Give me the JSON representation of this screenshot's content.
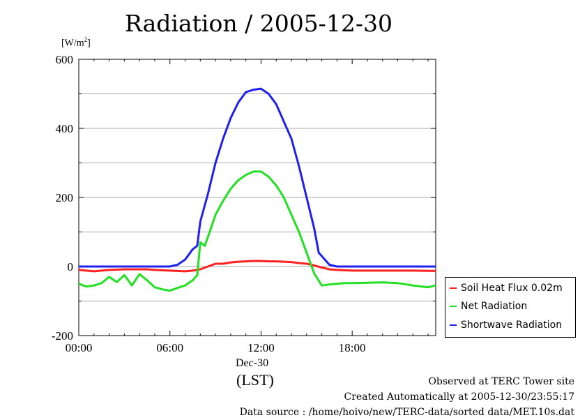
{
  "title": "Radiation / 2005-12-30",
  "unit_label": {
    "base": "[W/m",
    "sup": "2",
    "close": "]"
  },
  "x_axis": {
    "ticks": [
      "00:00",
      "06:00",
      "12:00",
      "18:00"
    ],
    "date_label": "Dec-30",
    "tz_label": "(LST)"
  },
  "legend": {
    "items": [
      {
        "label": "Soil Heat Flux 0.02m",
        "color": "#ff2020"
      },
      {
        "label": "Net Radiation",
        "color": "#22e022"
      },
      {
        "label": "Shortwave Radiation",
        "color": "#2020ee"
      }
    ]
  },
  "notes": {
    "line1": "Observed at TERC Tower site",
    "line2": "Created Automatically at 2005-12-30/23:55:17",
    "line3": "Data source : /home/hoivo/new/TERC-data/sorted  data/MET.10s.dat"
  },
  "chart_data": {
    "type": "line",
    "title": "Radiation / 2005-12-30",
    "ylabel": "[W/m2]",
    "xlabel": "Dec-30 (LST)",
    "ylim": [
      -200,
      600
    ],
    "xlim_hours": [
      0,
      23.5
    ],
    "yticks": [
      -200,
      0,
      200,
      400,
      600
    ],
    "xticks": [
      "00:00",
      "06:00",
      "12:00",
      "18:00"
    ],
    "grid": true,
    "legend_position": "right",
    "series": [
      {
        "name": "Soil Heat Flux 0.02m",
        "color": "#ff2020",
        "x_hours": [
          0,
          0.5,
          1,
          1.5,
          2,
          2.5,
          3,
          3.5,
          4,
          4.5,
          5,
          5.5,
          6,
          6.5,
          7,
          7.5,
          8,
          8.5,
          9,
          9.5,
          10,
          10.5,
          11,
          11.5,
          12,
          12.5,
          13,
          13.5,
          14,
          14.5,
          15,
          15.5,
          16,
          16.5,
          17,
          17.5,
          18,
          19,
          20,
          21,
          22,
          23.5
        ],
        "values": [
          -10,
          -12,
          -14,
          -12,
          -10,
          -9,
          -8,
          -8,
          -8,
          -8,
          -10,
          -11,
          -12,
          -13,
          -14,
          -12,
          -8,
          0,
          8,
          8,
          12,
          14,
          15,
          16,
          16,
          15,
          15,
          14,
          13,
          10,
          8,
          3,
          -3,
          -8,
          -10,
          -11,
          -12,
          -12,
          -12,
          -12,
          -12,
          -13
        ]
      },
      {
        "name": "Net Radiation",
        "color": "#22e022",
        "x_hours": [
          0,
          0.5,
          1,
          1.5,
          2,
          2.5,
          3,
          3.5,
          4,
          4.5,
          5,
          5.5,
          6,
          6.5,
          7,
          7.5,
          7.8,
          8,
          8.3,
          8.7,
          9,
          9.5,
          10,
          10.5,
          11,
          11.5,
          12,
          12.5,
          13,
          13.5,
          14,
          14.5,
          15,
          15.5,
          16,
          16.5,
          17,
          17.5,
          18,
          19,
          20,
          21,
          22,
          23,
          23.5
        ],
        "values": [
          -50,
          -58,
          -55,
          -48,
          -30,
          -45,
          -25,
          -55,
          -22,
          -40,
          -60,
          -66,
          -70,
          -62,
          -55,
          -40,
          -25,
          70,
          60,
          110,
          150,
          190,
          225,
          250,
          265,
          275,
          275,
          260,
          235,
          200,
          150,
          100,
          40,
          -20,
          -55,
          -52,
          -50,
          -48,
          -48,
          -47,
          -46,
          -48,
          -55,
          -60,
          -55
        ]
      },
      {
        "name": "Shortwave Radiation",
        "color": "#2020ee",
        "x_hours": [
          0,
          1,
          2,
          3,
          4,
          5,
          6,
          6.5,
          7,
          7.5,
          7.8,
          8,
          8.5,
          9,
          9.5,
          10,
          10.5,
          11,
          11.5,
          12,
          12.5,
          13,
          13.5,
          14,
          14.5,
          15,
          15.5,
          15.8,
          16,
          16.5,
          17,
          18,
          19,
          20,
          21,
          22,
          23,
          23.5
        ],
        "values": [
          0,
          0,
          0,
          0,
          0,
          0,
          0,
          5,
          20,
          50,
          60,
          130,
          210,
          300,
          370,
          430,
          475,
          505,
          512,
          515,
          500,
          470,
          420,
          370,
          290,
          200,
          110,
          40,
          30,
          5,
          0,
          0,
          0,
          0,
          0,
          0,
          0,
          0
        ]
      }
    ]
  }
}
